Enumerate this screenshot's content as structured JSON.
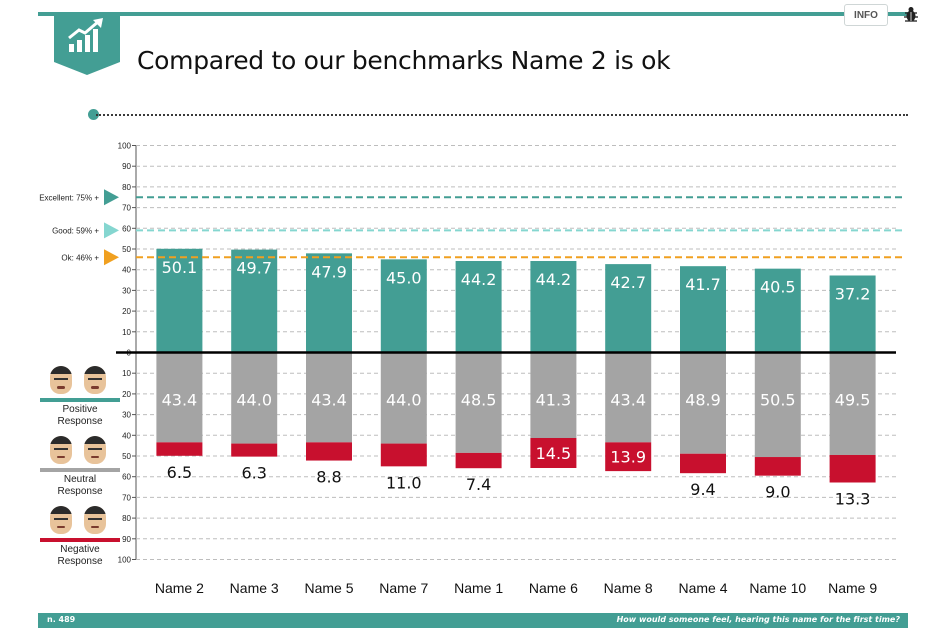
{
  "header": {
    "title": "Compared to our benchmarks Name 2 is ok",
    "info_label": "INFO"
  },
  "footer": {
    "left": "n. 489",
    "right": "How would someone feel, hearing this name for the first time?"
  },
  "legend": [
    {
      "label_line1": "Positive",
      "label_line2": "Response",
      "color": "#439e94"
    },
    {
      "label_line1": "Neutral",
      "label_line2": "Response",
      "color": "#a4a4a4"
    },
    {
      "label_line1": "Negative",
      "label_line2": "Response",
      "color": "#c8102e"
    }
  ],
  "chart_data": {
    "type": "bar",
    "stacking": "diverging",
    "categories": [
      "Name 2",
      "Name 3",
      "Name 5",
      "Name 7",
      "Name 1",
      "Name 6",
      "Name 8",
      "Name 4",
      "Name 10",
      "Name 9"
    ],
    "series": [
      {
        "name": "Positive Response",
        "values": [
          50.1,
          49.7,
          47.9,
          45.0,
          44.2,
          44.2,
          42.7,
          41.7,
          40.5,
          37.2
        ],
        "labels": [
          "50.1",
          "49.7",
          "47.9",
          "45.0",
          "44.2",
          "44.2",
          "42.7",
          "41.7",
          "40.5",
          "37.2"
        ]
      },
      {
        "name": "Neutral Response",
        "values": [
          43.4,
          44.0,
          43.4,
          44.0,
          48.5,
          41.3,
          43.4,
          48.9,
          50.5,
          49.5
        ],
        "labels": [
          "43.4",
          "44.0",
          "43.4",
          "44.0",
          "48.5",
          "41.3",
          "43.4",
          "48.9",
          "50.5",
          "49.5"
        ]
      },
      {
        "name": "Negative Response",
        "values": [
          6.5,
          6.3,
          8.8,
          11.0,
          7.4,
          14.5,
          13.9,
          9.4,
          9.0,
          13.3
        ],
        "labels": [
          "6.5",
          "6.3",
          "8.8",
          "11.0",
          "7.4",
          "14.5",
          "13.9",
          "9.4",
          "9.0",
          "13.3"
        ]
      }
    ],
    "upper_ticks": [
      0,
      10,
      20,
      30,
      40,
      50,
      60,
      70,
      80,
      90,
      100
    ],
    "lower_ticks": [
      10,
      20,
      30,
      40,
      50,
      60,
      70,
      80,
      90,
      100
    ],
    "ylim": [
      -100,
      100
    ],
    "grid": true,
    "benchmarks": [
      {
        "label": "Excellent: 75% +",
        "value": 75,
        "color": "#439e94"
      },
      {
        "label": "Good: 59% +",
        "value": 59,
        "color": "#85d6d0"
      },
      {
        "label": "Ok: 46% +",
        "value": 46,
        "color": "#f0a020"
      }
    ],
    "highlight_negative_inside": [
      5,
      6
    ]
  }
}
